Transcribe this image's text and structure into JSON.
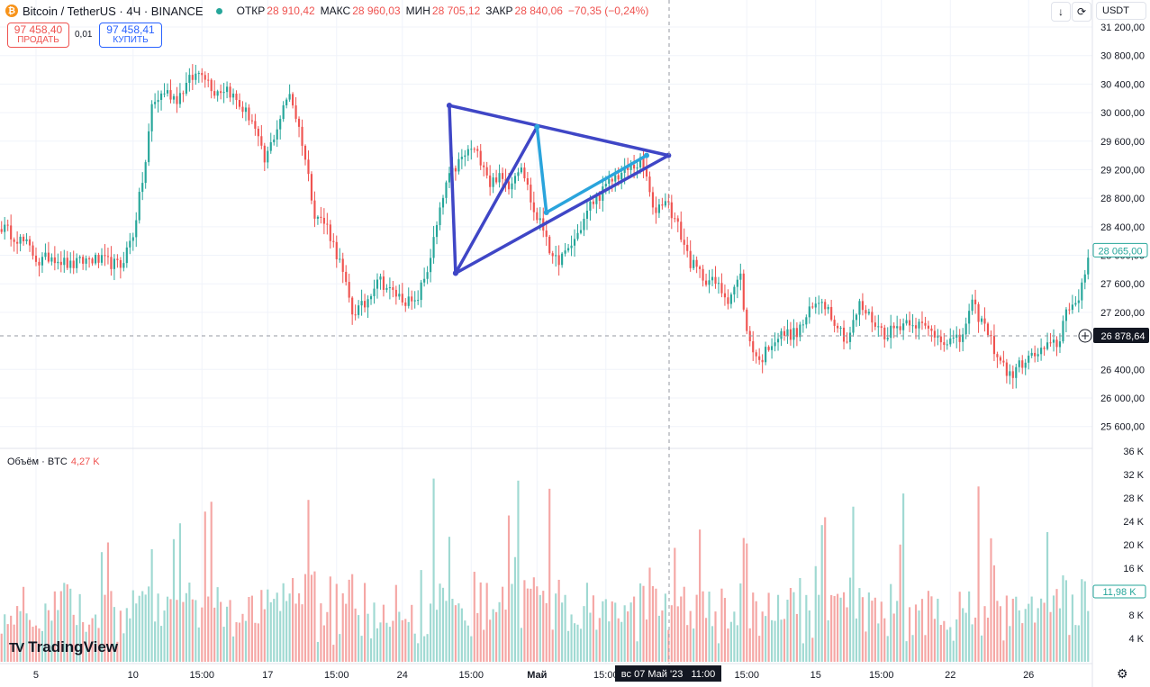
{
  "header": {
    "symbol": "Bitcoin / TetherUS · 4Ч · BINANCE",
    "coin_glyph": "₿",
    "ohlc": [
      {
        "label": "ОТКР",
        "value": "28 910,42"
      },
      {
        "label": "МАКС",
        "value": "28 960,03"
      },
      {
        "label": "МИН",
        "value": "28 705,12"
      },
      {
        "label": "ЗАКР",
        "value": "28 840,06"
      }
    ],
    "change": "−70,35 (−0,24%)",
    "sell_price": "97 458,40",
    "sell_label": "ПРОДАТЬ",
    "spread": "0,01",
    "buy_price": "97 458,41",
    "buy_label": "КУПИТЬ",
    "currency": "USDT"
  },
  "volume_pane": {
    "label": "Объём · BTC",
    "value": "4,27 K"
  },
  "logo": "TradingView",
  "crosshair": {
    "date_label": "вс 07 Май '23   11:00",
    "price_label": "26 878,64"
  },
  "colors": {
    "up": "#26a69a",
    "down": "#ef5350",
    "drawing_dark": "#3f46c6",
    "drawing_light": "#2aa4dc",
    "badge": "#131722"
  },
  "chart_data": {
    "type": "candlestick",
    "price_axis": {
      "min": 25600,
      "max": 31200,
      "ticks": [
        31200,
        30800,
        30400,
        30000,
        29600,
        29200,
        28800,
        28400,
        28000,
        27600,
        27200,
        26400,
        26000,
        25600
      ],
      "tick_labels": [
        "31 200,00",
        "30 800,00",
        "30 400,00",
        "30 000,00",
        "29 600,00",
        "29 200,00",
        "28 800,00",
        "28 400,00",
        "28 000,00",
        "27 600,00",
        "27 200,00",
        "26 400,00",
        "26 000,00",
        "25 600,00"
      ],
      "last_price": 28065,
      "last_price_label": "28 065,00"
    },
    "volume_axis": {
      "min": 0,
      "max": 36000,
      "ticks": [
        36000,
        32000,
        28000,
        24000,
        20000,
        16000,
        8000,
        4000
      ],
      "tick_labels": [
        "36 K",
        "32 K",
        "28 K",
        "24 K",
        "20 K",
        "16 K",
        "8 K",
        "4 K"
      ],
      "last_volume_label": "11,98 K"
    },
    "x_ticks": [
      "5",
      "10",
      "15:00",
      "17",
      "15:00",
      "24",
      "15:00",
      "Май",
      "15:00",
      "15:00",
      "15",
      "15:00",
      "22",
      "26"
    ],
    "close_path": [
      [
        0,
        28400
      ],
      [
        8,
        28150
      ],
      [
        12,
        27900
      ],
      [
        16,
        28000
      ],
      [
        22,
        27850
      ],
      [
        28,
        27950
      ],
      [
        34,
        27900
      ],
      [
        38,
        27850
      ],
      [
        42,
        28300
      ],
      [
        46,
        29300
      ],
      [
        48,
        30100
      ],
      [
        52,
        30300
      ],
      [
        56,
        30200
      ],
      [
        60,
        30450
      ],
      [
        64,
        30600
      ],
      [
        68,
        30300
      ],
      [
        72,
        30350
      ],
      [
        76,
        30100
      ],
      [
        80,
        29900
      ],
      [
        84,
        29300
      ],
      [
        88,
        29800
      ],
      [
        92,
        30300
      ],
      [
        96,
        29600
      ],
      [
        100,
        28600
      ],
      [
        104,
        28400
      ],
      [
        108,
        27900
      ],
      [
        112,
        27200
      ],
      [
        116,
        27300
      ],
      [
        120,
        27700
      ],
      [
        124,
        27500
      ],
      [
        128,
        27400
      ],
      [
        132,
        27300
      ],
      [
        136,
        27800
      ],
      [
        140,
        28600
      ],
      [
        142,
        29000
      ],
      [
        146,
        29300
      ],
      [
        150,
        29500
      ],
      [
        154,
        29300
      ],
      [
        156,
        29000
      ],
      [
        158,
        29100
      ],
      [
        162,
        29000
      ],
      [
        166,
        29300
      ],
      [
        170,
        28600
      ],
      [
        174,
        28300
      ],
      [
        176,
        27900
      ],
      [
        180,
        28000
      ],
      [
        184,
        28300
      ],
      [
        188,
        28700
      ],
      [
        192,
        28900
      ],
      [
        196,
        29100
      ],
      [
        200,
        29200
      ],
      [
        204,
        29300
      ],
      [
        206,
        29100
      ],
      [
        208,
        28600
      ],
      [
        212,
        28800
      ],
      [
        216,
        28400
      ],
      [
        220,
        27900
      ],
      [
        224,
        27700
      ],
      [
        228,
        27600
      ],
      [
        232,
        27400
      ],
      [
        236,
        27700
      ],
      [
        238,
        26900
      ],
      [
        242,
        26500
      ],
      [
        246,
        26800
      ],
      [
        250,
        26900
      ],
      [
        254,
        26900
      ],
      [
        258,
        27200
      ],
      [
        262,
        27400
      ],
      [
        266,
        27100
      ],
      [
        270,
        26800
      ],
      [
        274,
        27300
      ],
      [
        278,
        27100
      ],
      [
        282,
        26900
      ],
      [
        286,
        27000
      ],
      [
        290,
        27100
      ],
      [
        294,
        27000
      ],
      [
        298,
        26900
      ],
      [
        302,
        26800
      ],
      [
        306,
        26800
      ],
      [
        310,
        27300
      ],
      [
        314,
        27000
      ],
      [
        318,
        26600
      ],
      [
        322,
        26300
      ],
      [
        326,
        26500
      ],
      [
        330,
        26600
      ],
      [
        334,
        26700
      ],
      [
        338,
        26800
      ],
      [
        340,
        27300
      ],
      [
        344,
        27300
      ],
      [
        347,
        28000
      ]
    ],
    "candle_count": 348,
    "drawings": [
      {
        "color": "drawing_dark",
        "points": [
          [
            143,
            30100
          ],
          [
            145,
            27750
          ],
          [
            213,
            29400
          ],
          [
            143,
            30100
          ]
        ]
      },
      {
        "color": "drawing_dark",
        "points": [
          [
            145,
            27750
          ],
          [
            171,
            29800
          ]
        ]
      },
      {
        "color": "drawing_light",
        "points": [
          [
            171,
            29800
          ],
          [
            174,
            28600
          ],
          [
            206,
            29400
          ]
        ]
      }
    ]
  }
}
